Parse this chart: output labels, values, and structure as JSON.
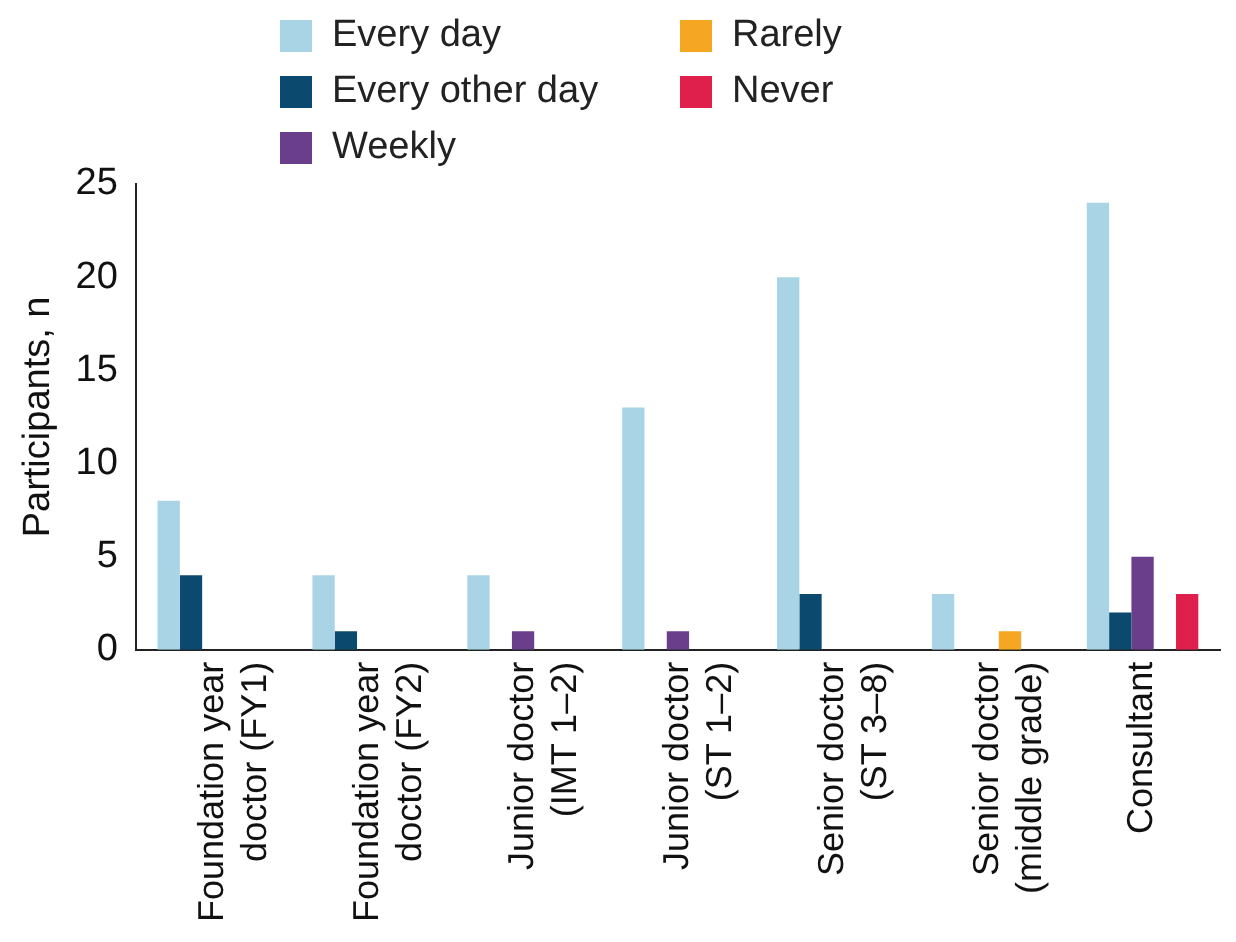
{
  "chart_data": {
    "type": "bar",
    "ylabel": "Participants, n",
    "categories": [
      "Foundation year doctor (FY1)",
      "Foundation year doctor (FY2)",
      "Junior doctor (IMT 1–2)",
      "Junior doctor (ST 1–2)",
      "Senior doctor (ST 3–8)",
      "Senior doctor (middle grade)",
      "Consultant"
    ],
    "series": [
      {
        "name": "Every day",
        "color": "#a8d4e6",
        "values": [
          8,
          4,
          4,
          13,
          20,
          3,
          24
        ]
      },
      {
        "name": "Every other day",
        "color": "#0b4a6e",
        "values": [
          4,
          1,
          null,
          null,
          3,
          null,
          2
        ]
      },
      {
        "name": "Weekly",
        "color": "#6b3e8c",
        "values": [
          null,
          null,
          1,
          1,
          null,
          null,
          5
        ]
      },
      {
        "name": "Rarely",
        "color": "#f5a623",
        "values": [
          null,
          null,
          null,
          null,
          null,
          1,
          null
        ]
      },
      {
        "name": "Never",
        "color": "#e0204c",
        "values": [
          null,
          null,
          null,
          null,
          null,
          null,
          3
        ]
      }
    ],
    "ylim": [
      0,
      25
    ],
    "yticks": [
      0,
      5,
      10,
      15,
      20,
      25
    ],
    "grid": false,
    "legend": "top"
  }
}
